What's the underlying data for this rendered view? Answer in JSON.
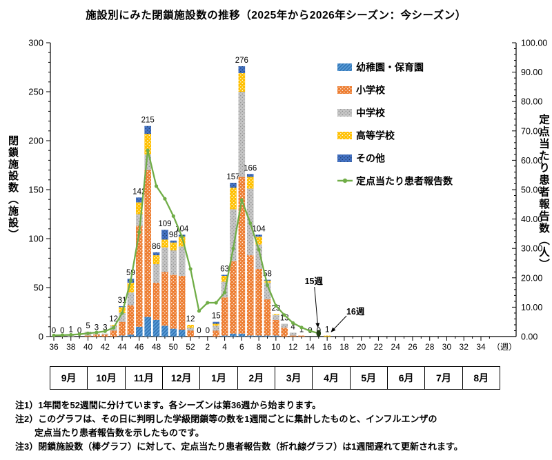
{
  "title": "施設別にみた閉鎖施設数の推移（2025年から2026年シーズン：今シーズン）",
  "axes": {
    "left_label": "閉鎖施設数（施設）",
    "right_label": "定点当たり患者報告数（人）",
    "week_unit_label": "（週）",
    "left_ticks": [
      "300",
      "250",
      "200",
      "150",
      "100",
      "50",
      "0"
    ],
    "right_ticks": [
      "100.00",
      "90.00",
      "80.00",
      "70.00",
      "60.00",
      "50.00",
      "40.00",
      "30.00",
      "20.00",
      "10.00",
      "0.00"
    ],
    "x_tick_labels": [
      "36",
      "38",
      "40",
      "42",
      "44",
      "46",
      "48",
      "50",
      "52",
      "2",
      "4",
      "6",
      "8",
      "10",
      "12",
      "14",
      "16",
      "18",
      "20",
      "22",
      "24",
      "26",
      "28",
      "30",
      "32",
      "34"
    ]
  },
  "legend": [
    {
      "label": "幼稚園・保育園",
      "fill": "#5B9BD5",
      "accent": "#2E74B5",
      "texture": "hatch"
    },
    {
      "label": "小学校",
      "fill": "#ED7D31",
      "accent": "#FFFFFF",
      "texture": "dots"
    },
    {
      "label": "中学校",
      "fill": "#C6C6C6",
      "accent": "#8C8C8C",
      "texture": "dots"
    },
    {
      "label": "高等学校",
      "fill": "#FFC000",
      "accent": "#FFFFFF",
      "texture": "dots"
    },
    {
      "label": "その他",
      "fill": "#4472C4",
      "accent": "#17375E",
      "texture": "dots"
    },
    {
      "label": "定点当たり患者報告数",
      "color": "#70AD47",
      "texture": "line"
    }
  ],
  "months": [
    "9月",
    "10月",
    "11月",
    "12月",
    "1月",
    "2月",
    "3月",
    "4月",
    "5月",
    "6月",
    "7月",
    "8月"
  ],
  "annotations": [
    {
      "text": "15週",
      "target": "line-end"
    },
    {
      "text": "16週",
      "target": "last-bar"
    }
  ],
  "notes": [
    "注1）1年間を52週間に分けています。各シーズンは第36週から始まります。",
    "注2）このグラフは、その日に判明した学級閉鎖等の数を1週間ごとに集計したものと、インフルエンザの",
    "定点当たり患者報告数を示したものです。",
    "注3）閉鎖施設数（棒グラフ）に対して、定点当たり患者報告数（折れ線グラフ）は1週間遅れて更新されます。"
  ],
  "chart_data": {
    "type": "bar",
    "subtype": "stacked-bars-with-line",
    "bar_weeks": [
      36,
      37,
      38,
      39,
      40,
      41,
      42,
      43,
      44,
      45,
      46,
      47,
      48,
      49,
      50,
      51,
      52,
      1,
      2,
      3,
      4,
      5,
      6,
      7,
      8,
      9,
      10,
      11,
      12,
      13,
      14,
      15,
      16
    ],
    "bar_totals": [
      0,
      0,
      1,
      0,
      5,
      3,
      3,
      12,
      31,
      59,
      142,
      215,
      86,
      109,
      98,
      104,
      12,
      0,
      0,
      15,
      63,
      157,
      276,
      166,
      104,
      58,
      23,
      13,
      4,
      1,
      0,
      0,
      1
    ],
    "series": [
      {
        "name": "幼稚園・保育園",
        "values": [
          0,
          0,
          0,
          0,
          0,
          0,
          0,
          0,
          1,
          2,
          10,
          20,
          17,
          11,
          8,
          7,
          0,
          0,
          0,
          0,
          1,
          3,
          3,
          1,
          1,
          1,
          1,
          0,
          0,
          0,
          0,
          0,
          0
        ]
      },
      {
        "name": "小学校",
        "values": [
          0,
          0,
          0,
          0,
          1,
          2,
          2,
          6,
          14,
          30,
          103,
          150,
          38,
          55,
          55,
          55,
          6,
          0,
          0,
          6,
          39,
          74,
          160,
          82,
          68,
          37,
          16,
          9,
          1,
          1,
          0,
          0,
          0
        ]
      },
      {
        "name": "中学校",
        "values": [
          0,
          0,
          1,
          0,
          4,
          1,
          1,
          5,
          9,
          13,
          12,
          16,
          19,
          25,
          25,
          30,
          3,
          0,
          0,
          5,
          16,
          53,
          87,
          68,
          25,
          17,
          5,
          4,
          3,
          0,
          0,
          0,
          0
        ]
      },
      {
        "name": "高等学校",
        "values": [
          0,
          0,
          0,
          0,
          0,
          0,
          0,
          1,
          6,
          10,
          12,
          21,
          9,
          8,
          8,
          10,
          3,
          0,
          0,
          2,
          6,
          22,
          19,
          12,
          8,
          2,
          1,
          0,
          0,
          0,
          0,
          0,
          1
        ]
      },
      {
        "name": "その他",
        "values": [
          0,
          0,
          0,
          0,
          0,
          0,
          0,
          0,
          1,
          4,
          5,
          8,
          3,
          10,
          2,
          2,
          0,
          0,
          0,
          2,
          1,
          5,
          7,
          3,
          2,
          1,
          0,
          0,
          0,
          0,
          0,
          0,
          0
        ]
      }
    ],
    "line": {
      "name": "定点当たり患者報告数",
      "weeks": [
        36,
        37,
        38,
        39,
        40,
        41,
        42,
        43,
        44,
        45,
        46,
        47,
        48,
        49,
        50,
        51,
        52,
        1,
        2,
        3,
        4,
        5,
        6,
        7,
        8,
        9,
        10,
        11,
        12,
        13,
        14,
        15
      ],
      "values": [
        0.4,
        0.5,
        0.6,
        0.8,
        1.1,
        1.4,
        1.8,
        3.0,
        8.0,
        19.0,
        35.5,
        63.4,
        51.2,
        46.9,
        41.0,
        34.0,
        23.0,
        8.7,
        11.5,
        11.5,
        15.0,
        30.0,
        46.5,
        38.6,
        29.6,
        17.5,
        10.5,
        7.3,
        4.6,
        3.1,
        1.9,
        1.1
      ],
      "color": "#70AD47",
      "end_marker_color": "#203b14"
    },
    "ylim_left": [
      0,
      300
    ],
    "ylim_right": [
      0,
      100
    ],
    "grid": false,
    "legend_position": "upper-right-inside"
  }
}
